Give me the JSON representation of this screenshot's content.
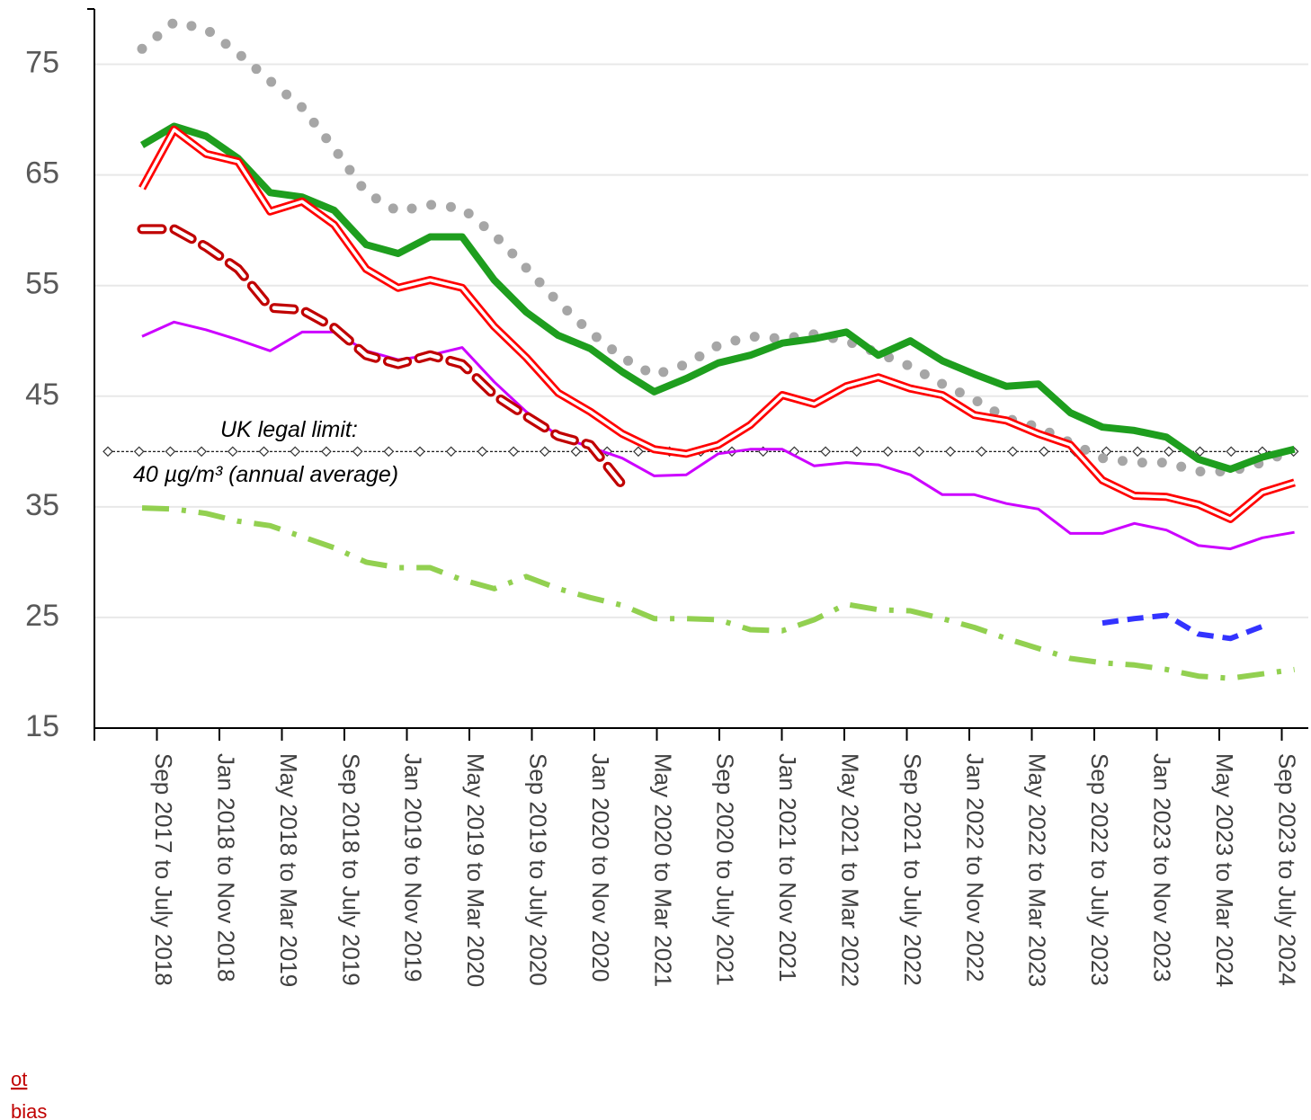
{
  "chart_data": {
    "type": "line",
    "categories": [
      "Sep 2017 to July 2018",
      null,
      "Jan 2018 to Nov 2018",
      null,
      "May 2018 to Mar 2019",
      null,
      "Sep 2018 to July 2019",
      null,
      "Jan 2019 to Nov 2019",
      null,
      "May 2019 to Mar 2020",
      null,
      "Sep 2019 to July 2020",
      null,
      "Jan 2020 to Nov 2020",
      null,
      "May 2020 to Mar 2021",
      null,
      "Sep 2020 to July 2021",
      null,
      "Jan 2021 to Nov 2021",
      null,
      "May 2021 to Mar 2022",
      null,
      "Sep 2021 to July 2022",
      null,
      "Jan 2022 to Nov 2022",
      null,
      "May 2022 to Mar 2023",
      null,
      "Sep 2022 to July 2023",
      null,
      "Jan 2023 to Nov 2023",
      null,
      "May 2023 to Mar 2024",
      null,
      "Sep 2023 to July 2024"
    ],
    "series": [
      {
        "color": "#a6a6a6",
        "style": "dotted",
        "values": [
          76.4,
          78.8,
          78.2,
          76,
          73.5,
          71.1,
          67.4,
          63.4,
          61.7,
          62.3,
          62,
          59.6,
          56.6,
          53.5,
          50.8,
          48.5,
          46.9,
          47.9,
          49.6,
          50.4,
          50.2,
          50.6,
          50,
          48.9,
          47.7,
          46.1,
          44.7,
          43,
          42.2,
          40.8,
          39.4,
          39,
          39,
          38.2,
          38.2,
          39,
          40.2
        ]
      },
      {
        "color": "#1e9e1e",
        "style": "thick",
        "values": [
          67.7,
          69.4,
          68.5,
          66.5,
          63.4,
          63,
          61.8,
          58.7,
          57.9,
          59.4,
          59.4,
          55.5,
          52.6,
          50.5,
          49.3,
          47.2,
          45.4,
          46.6,
          48,
          48.7,
          49.8,
          50.2,
          50.8,
          48.7,
          50,
          48.2,
          47,
          45.9,
          46.1,
          43.5,
          42.2,
          41.9,
          41.3,
          39.3,
          38.4,
          39.5,
          40.2
        ]
      },
      {
        "color": "#ff0000",
        "style": "double",
        "values": [
          63.8,
          69.1,
          66.9,
          66.2,
          61.7,
          62.6,
          60.5,
          56.5,
          54.8,
          55.5,
          54.8,
          51.3,
          48.5,
          45.3,
          43.6,
          41.6,
          40.2,
          39.8,
          40.6,
          42.4,
          45.1,
          44.3,
          45.9,
          46.7,
          45.7,
          45.1,
          43.3,
          42.8,
          41.6,
          40.6,
          37.4,
          36,
          35.9,
          35.2,
          33.9,
          36.3,
          37.2
        ]
      },
      {
        "color": "#cc00ff",
        "style": "thin",
        "values": [
          50.4,
          51.7,
          51,
          50.1,
          49.1,
          50.8,
          50.8,
          49.1,
          48.3,
          48.7,
          49.4,
          46.3,
          43.6,
          41.4,
          40.4,
          39.4,
          37.8,
          37.9,
          39.8,
          40.2,
          40.2,
          38.7,
          39,
          38.8,
          37.9,
          36.1,
          36.1,
          35.3,
          34.8,
          32.6,
          32.6,
          33.5,
          32.9,
          31.5,
          31.2,
          32.2,
          32.7
        ]
      },
      {
        "color": "#c00000",
        "style": "dashed-double",
        "values": [
          60.1,
          60.1,
          58.5,
          56.5,
          53,
          52.8,
          51.2,
          48.7,
          47.9,
          48.7,
          47.9,
          45.1,
          43.2,
          41.4,
          40.6,
          37,
          null,
          null,
          null,
          null,
          null,
          null,
          null,
          null,
          null,
          null,
          null,
          null,
          null,
          null,
          null,
          null,
          null,
          null,
          null,
          null,
          null
        ]
      },
      {
        "color": "#3333ff",
        "style": "dashed",
        "values": [
          null,
          null,
          null,
          null,
          null,
          null,
          null,
          null,
          null,
          null,
          null,
          null,
          null,
          null,
          null,
          null,
          null,
          null,
          null,
          null,
          null,
          null,
          null,
          null,
          null,
          null,
          null,
          null,
          null,
          null,
          24.5,
          24.9,
          25.2,
          23.5,
          23.1,
          24.2,
          null
        ]
      },
      {
        "color": "#92d050",
        "style": "dash-dot",
        "values": [
          34.9,
          34.8,
          34.4,
          33.7,
          33.3,
          32.3,
          31.3,
          30,
          29.5,
          29.5,
          28.4,
          27.6,
          28.7,
          27.6,
          26.8,
          26.1,
          24.9,
          24.9,
          24.8,
          23.9,
          23.8,
          24.8,
          26.2,
          25.7,
          25.6,
          24.9,
          24.1,
          23.1,
          22.2,
          21.3,
          20.9,
          20.7,
          20.3,
          19.7,
          19.5,
          19.9,
          20.3
        ]
      }
    ],
    "reference_line": {
      "value": 40,
      "label": "UK legal limit:",
      "sublabel": "40 µg/m³ (annual average)"
    },
    "ylim": [
      15,
      80
    ],
    "yticks": [
      15,
      25,
      35,
      45,
      55,
      65,
      75
    ],
    "grid": true
  },
  "side_links": [
    "ot",
    "bias"
  ]
}
